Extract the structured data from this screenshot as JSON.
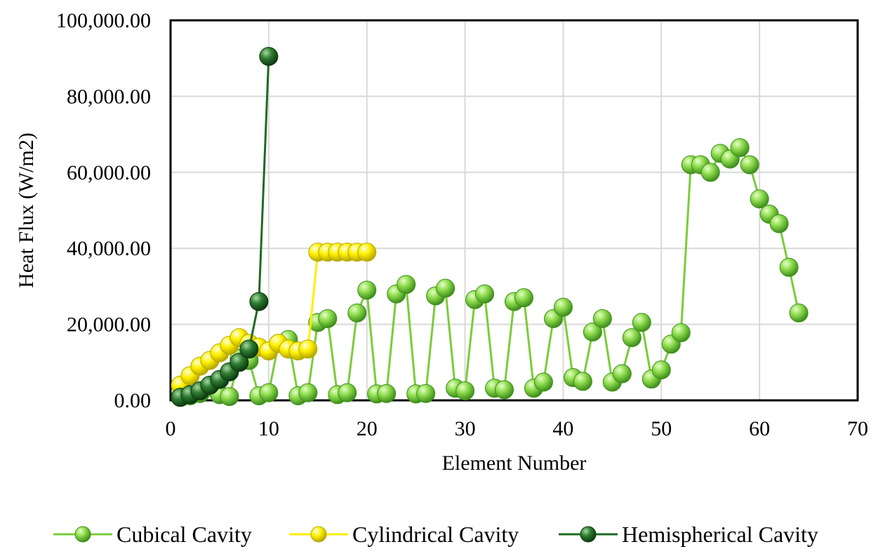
{
  "chart_data": {
    "type": "scatter",
    "xlabel": "Element Number",
    "ylabel": "Heat Flux (W/m2)",
    "xlim": [
      0,
      70
    ],
    "ylim": [
      0,
      100000
    ],
    "xticks": [
      "0",
      "10",
      "20",
      "30",
      "40",
      "50",
      "60",
      "70"
    ],
    "yticks": [
      "0.00",
      "20,000.00",
      "40,000.00",
      "60,000.00",
      "80,000.00",
      "100,000.00"
    ],
    "grid": true,
    "legend_position": "bottom",
    "series": [
      {
        "name": "Cubical Cavity",
        "color": "#7acc3a",
        "x": [
          1,
          2,
          3,
          4,
          5,
          6,
          7,
          8,
          9,
          10,
          11,
          12,
          13,
          14,
          15,
          16,
          17,
          18,
          19,
          20,
          21,
          22,
          23,
          24,
          25,
          26,
          27,
          28,
          29,
          30,
          31,
          32,
          33,
          34,
          35,
          36,
          37,
          38,
          39,
          40,
          41,
          42,
          43,
          44,
          45,
          46,
          47,
          48,
          49,
          50,
          51,
          52,
          53,
          54,
          55,
          56,
          57,
          58,
          59,
          60,
          61,
          62,
          63,
          64
        ],
        "y": [
          800,
          1200,
          1800,
          3500,
          1500,
          1000,
          11000,
          10500,
          1200,
          2000,
          15000,
          16000,
          1200,
          2000,
          20500,
          21500,
          1500,
          2000,
          23000,
          29000,
          1700,
          1800,
          28000,
          30500,
          1700,
          1800,
          27500,
          29500,
          3200,
          2500,
          26500,
          28000,
          3200,
          2800,
          26000,
          27000,
          3200,
          4800,
          21500,
          24500,
          6000,
          5000,
          18000,
          21500,
          4800,
          7000,
          16500,
          20500,
          5600,
          8000,
          14800,
          17800,
          62000,
          62000,
          60000,
          65000,
          63500,
          66500,
          62000,
          53000,
          49000,
          46500,
          35000,
          23000
        ]
      },
      {
        "name": "Cylindrical Cavity",
        "color": "#ffee00",
        "x": [
          1,
          2,
          3,
          4,
          5,
          6,
          7,
          8,
          9,
          10,
          11,
          12,
          13,
          14,
          15,
          16,
          17,
          18,
          19,
          20
        ],
        "y": [
          4000,
          6500,
          9000,
          10500,
          12500,
          14500,
          16500,
          15000,
          14000,
          13000,
          15000,
          13500,
          13000,
          13500,
          39000,
          39000,
          39000,
          39000,
          39000,
          39000
        ]
      },
      {
        "name": "Hemispherical Cavity",
        "color": "#1e6b22",
        "x": [
          1,
          2,
          3,
          4,
          5,
          6,
          7,
          8,
          9,
          10
        ],
        "y": [
          800,
          1500,
          2500,
          4000,
          5500,
          7500,
          10000,
          13500,
          26000,
          90500
        ]
      }
    ]
  }
}
